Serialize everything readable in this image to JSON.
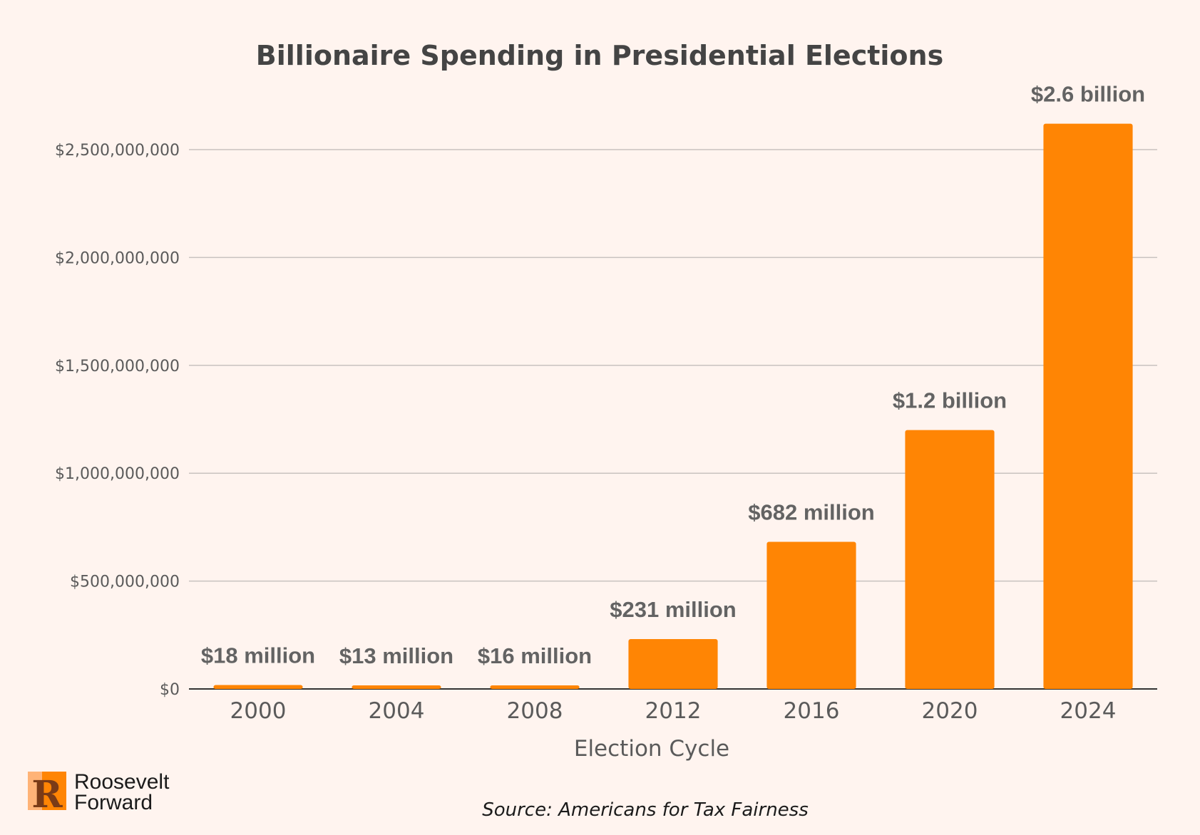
{
  "colors": {
    "background": "#fff4ef",
    "bar": "#ff8504",
    "grid": "#c8c2bf",
    "baseline": "#333333",
    "text_dark": "#444444",
    "text_muted": "#5a5a5a",
    "logo_orange": "#ff8504",
    "logo_peach": "#ffb377",
    "logo_brown": "#7a3b17"
  },
  "logo": {
    "letter": "R",
    "line1": "Roosevelt",
    "line2": "Forward"
  },
  "source": "Source: Americans for Tax Fairness",
  "chart_data": {
    "type": "bar",
    "title": "Billionaire Spending in Presidential Elections",
    "xlabel": "Election Cycle",
    "ylabel": "",
    "categories": [
      "2000",
      "2004",
      "2008",
      "2012",
      "2016",
      "2020",
      "2024"
    ],
    "values": [
      18000000,
      13000000,
      16000000,
      231000000,
      682000000,
      1200000000,
      2620000000
    ],
    "data_labels": [
      "$18 million",
      "$13 million",
      "$16 million",
      "$231 million",
      "$682 million",
      "$1.2 billion",
      "$2.6 billion"
    ],
    "ylim": [
      0,
      2500000000
    ],
    "yticks": [
      0,
      500000000,
      1000000000,
      1500000000,
      2000000000,
      2500000000
    ],
    "ytick_labels": [
      "$0",
      "$500,000,000",
      "$1,000,000,000",
      "$1,500,000,000",
      "$2,000,000,000",
      "$2,500,000,000"
    ],
    "grid": true,
    "legend": "none"
  }
}
